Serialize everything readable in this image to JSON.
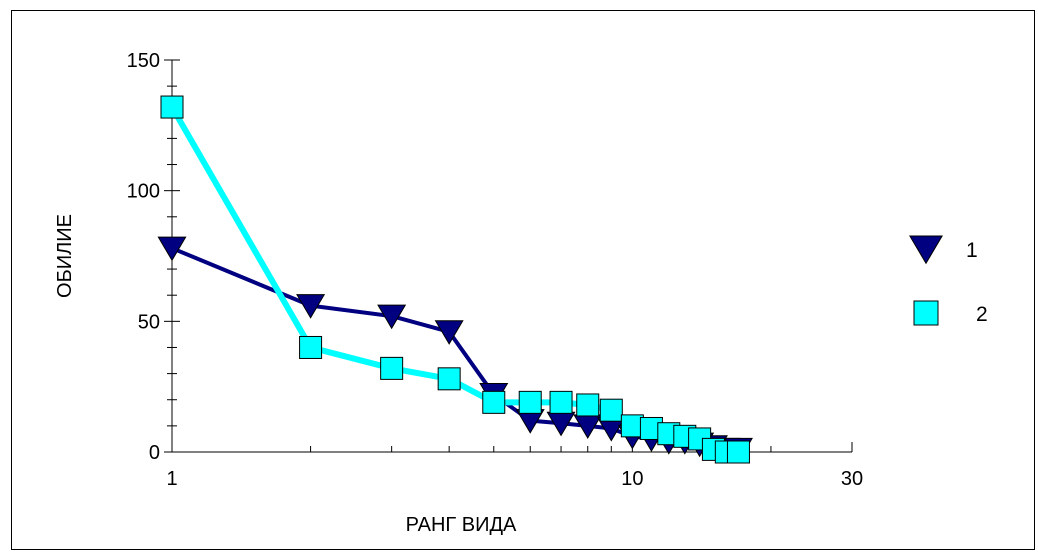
{
  "chart_data": {
    "type": "line",
    "title": "",
    "xlabel": "РАНГ ВИДА",
    "ylabel": "ОБИЛИЕ",
    "xscale": "log",
    "xlim": [
      1,
      30
    ],
    "ylim": [
      0,
      150
    ],
    "x_ticks": [
      1,
      10,
      30
    ],
    "y_ticks": [
      0,
      50,
      100,
      150
    ],
    "grid": false,
    "legend_position": "right",
    "series": [
      {
        "name": "1",
        "color": "#000080",
        "marker": "triangle-down",
        "x": [
          1,
          2,
          3,
          4,
          5,
          6,
          7,
          8,
          9,
          10,
          11,
          12,
          13,
          14,
          15,
          16,
          17
        ],
        "y": [
          78,
          56,
          52,
          46,
          22,
          12,
          11,
          10,
          9,
          6,
          5,
          4,
          4,
          3,
          2,
          1,
          1
        ]
      },
      {
        "name": "2",
        "color": "#00ffff",
        "marker": "square",
        "x": [
          1,
          2,
          3,
          4,
          5,
          6,
          7,
          8,
          9,
          10,
          11,
          12,
          13,
          14,
          15,
          16,
          17
        ],
        "y": [
          132,
          40,
          32,
          28,
          19,
          19,
          19,
          18,
          16,
          10,
          9,
          7,
          6,
          5,
          1,
          0,
          0
        ]
      }
    ]
  }
}
